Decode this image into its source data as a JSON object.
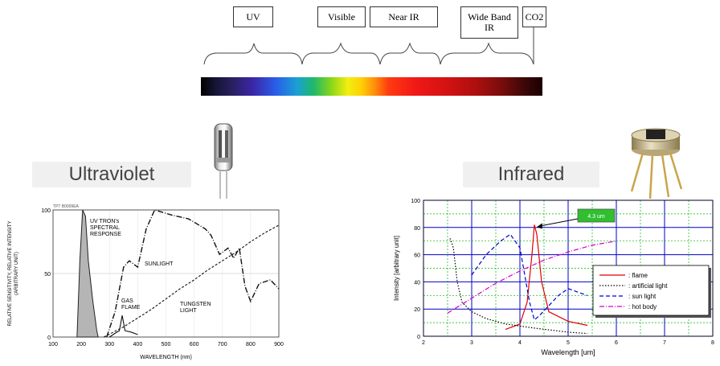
{
  "spectrum": {
    "labels": [
      "UV",
      "Visible",
      "Near IR",
      "Wide Band IR",
      "CO2"
    ]
  },
  "sections": {
    "left": "Ultraviolet",
    "right": "Infrared"
  },
  "chart_data": [
    {
      "type": "line",
      "code": "TPT B0009EA",
      "xlabel": "WAVELENGTH (nm)",
      "ylabel": "RELATIVE SENSITIVITY, RELATIVE INTENSITY (ARBITRARY UNIT)",
      "xlim": [
        100,
        900
      ],
      "ylim": [
        0,
        100
      ],
      "xticks": [
        100,
        200,
        300,
        400,
        500,
        600,
        700,
        800,
        900
      ],
      "yticks": [
        0,
        50,
        100
      ],
      "annotations": [
        "UV TRON's SPECTRAL RESPONSE",
        "SUNLIGHT",
        "GAS FLAME",
        "TUNGSTEN LIGHT"
      ],
      "series": [
        {
          "name": "UV TRON's SPECTRAL RESPONSE",
          "x": [
            185,
            195,
            205,
            215,
            225,
            240,
            255,
            260
          ],
          "y": [
            0,
            60,
            100,
            95,
            60,
            30,
            5,
            0
          ]
        },
        {
          "name": "SUNLIGHT",
          "x": [
            290,
            320,
            350,
            370,
            400,
            430,
            460,
            520,
            580,
            640,
            660,
            690,
            720,
            740,
            760,
            780,
            800,
            830,
            870,
            900
          ],
          "y": [
            0,
            20,
            55,
            60,
            55,
            85,
            100,
            96,
            93,
            85,
            80,
            65,
            70,
            62,
            70,
            40,
            28,
            42,
            45,
            38
          ]
        },
        {
          "name": "TUNGSTEN LIGHT",
          "x": [
            280,
            350,
            400,
            450,
            500,
            550,
            600,
            650,
            700,
            750,
            800,
            850,
            900
          ],
          "y": [
            0,
            8,
            15,
            22,
            30,
            38,
            45,
            53,
            60,
            67,
            75,
            82,
            88
          ]
        },
        {
          "name": "GAS FLAME",
          "x": [
            300,
            320,
            335,
            345,
            355,
            375,
            400
          ],
          "y": [
            0,
            3,
            5,
            17,
            5,
            4,
            2
          ]
        }
      ]
    },
    {
      "type": "line",
      "xlabel": "Wavelength [um]",
      "ylabel": "Intensity [arbitrary unit]",
      "xlim": [
        2,
        8
      ],
      "ylim": [
        0,
        100
      ],
      "xticks": [
        2,
        3,
        4,
        5,
        6,
        7,
        8
      ],
      "yticks": [
        0,
        20,
        40,
        60,
        80,
        100
      ],
      "annotation": "4.3 um",
      "legend": [
        "flame",
        "artificial light",
        "sun light",
        "hot body"
      ],
      "legend_position": "bottom-right",
      "series": [
        {
          "name": "flame",
          "color": "#e00000",
          "x": [
            3.7,
            4.0,
            4.15,
            4.25,
            4.3,
            4.35,
            4.45,
            4.6,
            5.0,
            5.4
          ],
          "y": [
            5,
            9,
            25,
            60,
            82,
            75,
            40,
            18,
            11,
            8
          ]
        },
        {
          "name": "artificial light",
          "color": "#000000",
          "x": [
            2.55,
            2.62,
            2.7,
            2.8,
            3.0,
            3.3,
            3.7,
            4.3,
            5.0,
            5.4
          ],
          "y": [
            72,
            65,
            40,
            25,
            18,
            13,
            9,
            6,
            3,
            2
          ]
        },
        {
          "name": "sun light",
          "color": "#0000d0",
          "x": [
            3.0,
            3.3,
            3.6,
            3.8,
            4.0,
            4.2,
            4.3,
            4.4,
            4.8,
            5.0,
            5.4
          ],
          "y": [
            45,
            60,
            70,
            75,
            65,
            25,
            12,
            15,
            30,
            35,
            30
          ]
        },
        {
          "name": "hot body",
          "color": "#d000d0",
          "x": [
            2.5,
            3.0,
            3.5,
            4.0,
            4.5,
            5.0,
            5.5,
            6.0
          ],
          "y": [
            17,
            28,
            39,
            48,
            56,
            62,
            67,
            70
          ]
        }
      ]
    }
  ]
}
